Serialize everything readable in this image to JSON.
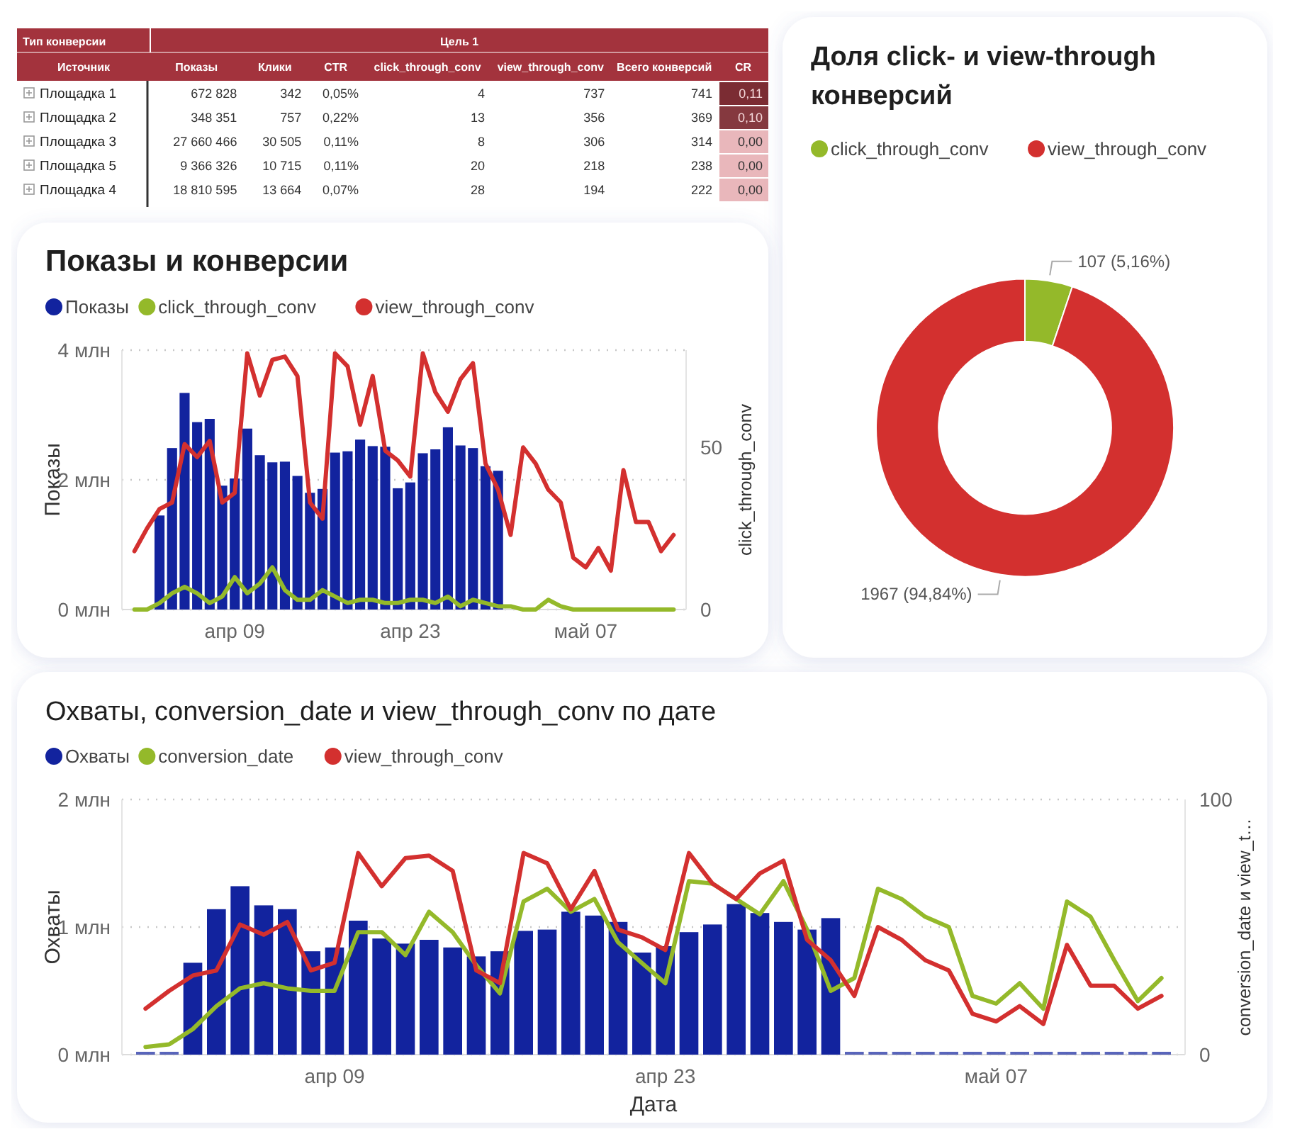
{
  "chart_data": [
    {
      "type": "other",
      "annotations": [
        "Тип конверсии",
        "Цель 1",
        "Источник"
      ],
      "categories": [
        "Показы",
        "Клики",
        "CTR",
        "click_through_conv",
        "view_through_conv",
        "Всего конверсий",
        "CR"
      ],
      "y_categories": [
        "Площадка 1",
        "Площадка 2",
        "Площадка 3",
        "Площадка 5",
        "Площадка 4"
      ],
      "cell_labels": [
        [
          "672 828",
          "342",
          "0,05%",
          "4",
          "737",
          "741",
          "0,11"
        ],
        [
          "348 351",
          "757",
          "0,22%",
          "13",
          "356",
          "369",
          "0,10"
        ],
        [
          "27 660 466",
          "30 505",
          "0,11%",
          "8",
          "306",
          "314",
          "0,00"
        ],
        [
          "9 366 326",
          "10 715",
          "0,11%",
          "20",
          "218",
          "238",
          "0,00"
        ],
        [
          "18 810 595",
          "13 664",
          "0,07%",
          "28",
          "194",
          "222",
          "0,00"
        ]
      ]
    },
    {
      "type": "donut",
      "title": "Доля click- и view-through конверсий",
      "categories": [
        "click_through_conv",
        "view_through_conv"
      ],
      "values": [
        107,
        1967
      ],
      "colors": [
        "#94b92a",
        "#d3302f"
      ],
      "value_labels": [
        "107 (5,16%)",
        "1967 (94,84%)"
      ],
      "legend": "top left"
    },
    {
      "type": "bar",
      "title": "Показы и конверсии",
      "ylabel": "Показы",
      "y2label": "click_through_conv",
      "x": [
        "--04-01",
        "--04-02",
        "--04-03",
        "--04-04",
        "--04-05",
        "--04-06",
        "--04-07",
        "--04-08",
        "--04-09",
        "--04-10",
        "--04-11",
        "--04-12",
        "--04-13",
        "--04-14",
        "--04-15",
        "--04-16",
        "--04-17",
        "--04-18",
        "--04-19",
        "--04-20",
        "--04-21",
        "--04-22",
        "--04-23",
        "--04-24",
        "--04-25",
        "--04-26",
        "--04-27",
        "--04-28",
        "--04-29",
        "--04-30",
        "--05-01",
        "--05-02",
        "--05-03",
        "--05-04",
        "--05-05",
        "--05-06",
        "--05-07",
        "--05-08",
        "--05-09",
        "--05-10",
        "--05-11",
        "--05-12",
        "--05-13",
        "--05-14"
      ],
      "xlim": [
        "--03-31",
        "--05-15"
      ],
      "xticks": [
        {
          "value": "--04-09",
          "label": "апр 09"
        },
        {
          "value": "--04-23",
          "label": "апр 23"
        },
        {
          "value": "--05-07",
          "label": "май 07"
        }
      ],
      "ylim": [
        0,
        4
      ],
      "yticks": [
        {
          "value": 0,
          "label": "0 млн"
        },
        {
          "value": 2,
          "label": "2 млн"
        },
        {
          "value": 4,
          "label": "4 млн"
        }
      ],
      "y2lim": [
        0,
        80
      ],
      "y2ticks": [
        0,
        50
      ],
      "grid": "y",
      "legend": "top left",
      "series": [
        {
          "name": "Показы",
          "type": "bar",
          "color": "#12239e",
          "values": [
            null,
            null,
            1.45,
            2.49,
            3.34,
            2.89,
            2.94,
            1.91,
            2.02,
            2.79,
            2.38,
            2.27,
            2.28,
            2.06,
            1.8,
            1.86,
            2.42,
            2.44,
            2.62,
            2.52,
            2.51,
            1.87,
            1.96,
            2.41,
            2.47,
            2.81,
            2.53,
            2.49,
            2.21,
            2.14,
            null,
            null,
            null,
            null,
            null,
            null,
            null,
            null,
            null,
            null,
            null,
            null,
            null,
            null
          ]
        },
        {
          "name": "click_through_conv",
          "type": "line",
          "axis": "y2",
          "color": "#94b92a",
          "values": [
            0,
            0,
            2,
            5,
            7,
            5,
            2,
            4,
            10,
            5,
            8,
            13,
            6,
            3,
            3,
            6,
            4,
            2,
            3,
            3,
            2,
            2,
            3,
            3,
            2,
            4,
            1,
            3,
            2,
            1,
            1,
            0,
            0,
            3,
            1,
            0,
            0,
            0,
            0,
            0,
            0,
            0,
            0,
            0
          ]
        },
        {
          "name": "view_through_conv",
          "type": "line",
          "axis": "y2",
          "color": "#d3302f",
          "values": [
            18,
            25,
            31,
            33,
            51,
            47,
            52,
            33,
            36,
            79,
            66,
            77,
            78,
            72,
            33,
            28,
            79,
            75,
            57,
            72,
            49,
            46,
            41,
            79,
            67,
            61,
            71,
            76,
            45,
            37,
            23,
            50,
            45,
            37,
            33,
            16,
            13,
            19,
            12,
            43,
            27,
            27,
            18,
            23
          ]
        }
      ]
    },
    {
      "type": "bar",
      "title": "Охваты, conversion_date и view_through_conv по дате",
      "xlabel": "Дата",
      "ylabel": "Охваты",
      "y2label": "conversion_date и view_t…",
      "x": [
        "--04-01",
        "--04-02",
        "--04-03",
        "--04-04",
        "--04-05",
        "--04-06",
        "--04-07",
        "--04-08",
        "--04-09",
        "--04-10",
        "--04-11",
        "--04-12",
        "--04-13",
        "--04-14",
        "--04-15",
        "--04-16",
        "--04-17",
        "--04-18",
        "--04-19",
        "--04-20",
        "--04-21",
        "--04-22",
        "--04-23",
        "--04-24",
        "--04-25",
        "--04-26",
        "--04-27",
        "--04-28",
        "--04-29",
        "--04-30",
        "--05-01",
        "--05-02",
        "--05-03",
        "--05-04",
        "--05-05",
        "--05-06",
        "--05-07",
        "--05-08",
        "--05-09",
        "--05-10",
        "--05-11",
        "--05-12",
        "--05-13",
        "--05-14"
      ],
      "xlim": [
        "--03-31",
        "--05-15"
      ],
      "xticks": [
        {
          "value": "--04-09",
          "label": "апр 09"
        },
        {
          "value": "--04-23",
          "label": "апр 23"
        },
        {
          "value": "--05-07",
          "label": "май 07"
        }
      ],
      "ylim": [
        0,
        2
      ],
      "yticks": [
        {
          "value": 0,
          "label": "0 млн"
        },
        {
          "value": 1,
          "label": "1 млн"
        },
        {
          "value": 2,
          "label": "2 млн"
        }
      ],
      "y2lim": [
        0,
        100
      ],
      "y2ticks": [
        0,
        100
      ],
      "grid": "y",
      "legend": "top left",
      "series": [
        {
          "name": "Охваты",
          "type": "bar",
          "color": "#12239e",
          "values": [
            0,
            0,
            0.72,
            1.14,
            1.32,
            1.17,
            1.14,
            0.81,
            0.84,
            1.05,
            0.91,
            0.87,
            0.9,
            0.84,
            0.77,
            0.81,
            0.97,
            0.98,
            1.12,
            1.09,
            1.04,
            0.8,
            0.85,
            0.96,
            1.02,
            1.18,
            1.11,
            1.04,
            0.98,
            1.07,
            0,
            0,
            0,
            0,
            0,
            0,
            0,
            0,
            0,
            0,
            0,
            0,
            0,
            0
          ]
        },
        {
          "name": "conversion_date",
          "type": "line",
          "axis": "y2",
          "color": "#94b92a",
          "values": [
            3,
            4,
            10,
            19,
            26,
            28,
            26,
            25,
            25,
            48,
            48,
            39,
            56,
            48,
            35,
            24,
            60,
            65,
            56,
            61,
            44,
            36,
            28,
            68,
            67,
            61,
            55,
            68,
            49,
            25,
            30,
            65,
            61,
            54,
            50,
            23,
            20,
            28,
            18,
            60,
            54,
            37,
            21,
            30
          ]
        },
        {
          "name": "view_through_conv",
          "type": "line",
          "axis": "y2",
          "color": "#d3302f",
          "values": [
            18,
            25,
            31,
            33,
            51,
            47,
            52,
            33,
            36,
            79,
            66,
            77,
            78,
            72,
            33,
            28,
            79,
            75,
            57,
            72,
            49,
            46,
            41,
            79,
            67,
            61,
            71,
            76,
            45,
            37,
            23,
            50,
            45,
            37,
            33,
            16,
            13,
            19,
            12,
            43,
            27,
            27,
            18,
            23
          ]
        }
      ]
    }
  ]
}
